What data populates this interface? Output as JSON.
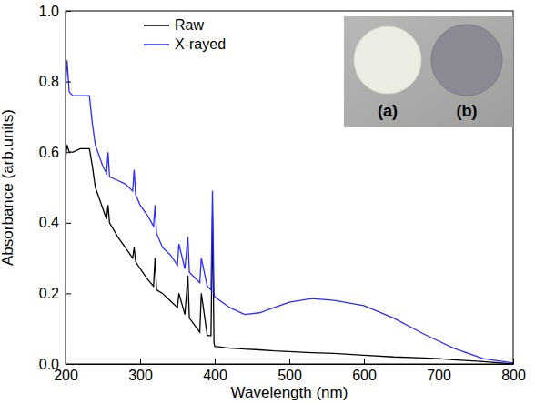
{
  "chart_data": {
    "type": "line",
    "x_label": "Wavelength (nm)",
    "y_label": "Absorbance (arb.units)",
    "x": [
      200,
      202,
      205,
      210,
      220,
      232,
      236,
      240,
      250,
      255,
      257,
      259,
      270,
      280,
      290,
      292,
      294,
      300,
      310,
      318,
      320,
      322,
      330,
      340,
      350,
      352,
      360,
      364,
      366,
      380,
      382,
      390,
      395,
      397,
      399,
      400,
      420,
      440,
      460,
      480,
      500,
      530,
      560,
      600,
      640,
      680,
      700,
      720,
      760,
      800
    ],
    "series": [
      {
        "name": "Raw",
        "color": "#000000",
        "values": [
          0.58,
          0.62,
          0.6,
          0.6,
          0.61,
          0.61,
          0.56,
          0.5,
          0.44,
          0.41,
          0.45,
          0.4,
          0.36,
          0.33,
          0.3,
          0.33,
          0.29,
          0.27,
          0.24,
          0.22,
          0.3,
          0.21,
          0.2,
          0.18,
          0.16,
          0.2,
          0.14,
          0.25,
          0.13,
          0.09,
          0.2,
          0.08,
          0.08,
          0.42,
          0.06,
          0.05,
          0.045,
          0.042,
          0.04,
          0.037,
          0.035,
          0.032,
          0.03,
          0.025,
          0.02,
          0.017,
          0.015,
          0.012,
          0.007,
          0.0
        ]
      },
      {
        "name": "X-rayed",
        "color": "#2a2aff",
        "values": [
          0.78,
          0.86,
          0.77,
          0.76,
          0.76,
          0.76,
          0.68,
          0.62,
          0.56,
          0.54,
          0.6,
          0.53,
          0.52,
          0.51,
          0.49,
          0.55,
          0.48,
          0.45,
          0.42,
          0.39,
          0.45,
          0.37,
          0.33,
          0.31,
          0.28,
          0.34,
          0.27,
          0.36,
          0.26,
          0.23,
          0.3,
          0.22,
          0.21,
          0.49,
          0.2,
          0.19,
          0.16,
          0.14,
          0.145,
          0.16,
          0.175,
          0.185,
          0.18,
          0.165,
          0.13,
          0.085,
          0.065,
          0.045,
          0.015,
          0.003
        ]
      }
    ],
    "xlim": [
      200,
      800
    ],
    "xticks": [
      200,
      300,
      400,
      500,
      600,
      700,
      800
    ],
    "ylim": [
      0,
      1
    ],
    "yticks": [
      {
        "value": 0,
        "label": "0.0"
      },
      0.2,
      0.4,
      0.6,
      0.8,
      {
        "value": 1,
        "label": "1.0"
      }
    ],
    "legend": "upper left",
    "annotations": [
      "(a)",
      "(b)"
    ]
  }
}
